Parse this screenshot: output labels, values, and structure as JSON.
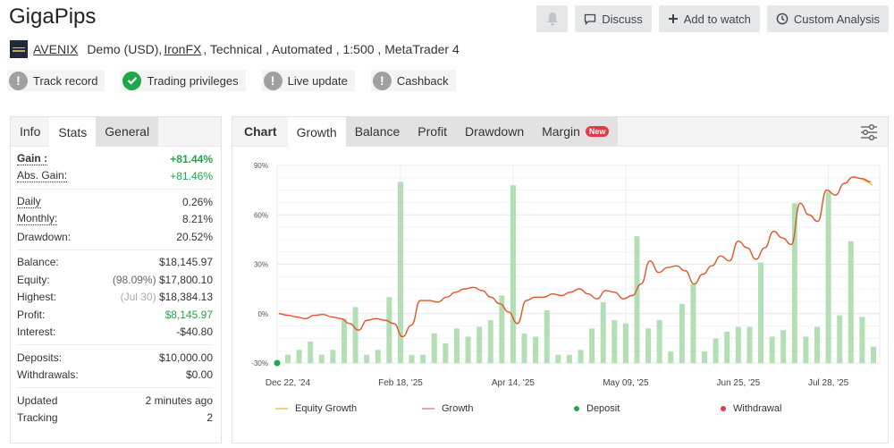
{
  "header": {
    "title": "GigaPips",
    "actions": {
      "bell_icon": "bell-icon",
      "discuss": "Discuss",
      "add_to_watch": "Add to watch",
      "custom_analysis": "Custom Analysis"
    }
  },
  "account": {
    "owner": "AVENIX",
    "type": "Demo (USD),",
    "broker": "IronFX",
    "details": ", Technical , Automated , 1:500 , MetaTrader 4"
  },
  "badges": [
    {
      "label": "Track record",
      "status": "warning"
    },
    {
      "label": "Trading privileges",
      "status": "ok"
    },
    {
      "label": "Live update",
      "status": "warning"
    },
    {
      "label": "Cashback",
      "status": "warning"
    }
  ],
  "left_tabs": [
    "Info",
    "Stats",
    "General"
  ],
  "stats": {
    "gain": {
      "label": "Gain :",
      "value": "+81.44%"
    },
    "abs_gain": {
      "label": "Abs. Gain:",
      "value": "+81.46%"
    },
    "daily": {
      "label": "Daily",
      "value": "0.26%"
    },
    "monthly": {
      "label": "Monthly:",
      "value": "8.21%"
    },
    "drawdown": {
      "label": "Drawdown:",
      "value": "20.52%"
    },
    "balance": {
      "label": "Balance:",
      "value": "$18,145.97"
    },
    "equity": {
      "label": "Equity:",
      "sub": "(98.09%)",
      "value": "$17,800.10"
    },
    "highest": {
      "label": "Highest:",
      "sub": "(Jul 30)",
      "value": "$18,384.13"
    },
    "profit": {
      "label": "Profit:",
      "value": "$8,145.97"
    },
    "interest": {
      "label": "Interest:",
      "value": "-$40.80"
    },
    "deposits": {
      "label": "Deposits:",
      "value": "$10,000.00"
    },
    "withdrawals": {
      "label": "Withdrawals:",
      "value": "$0.00"
    },
    "updated": {
      "label": "Updated",
      "value": "2 minutes ago"
    },
    "tracking": {
      "label": "Tracking",
      "value": "2"
    }
  },
  "chart_tabs": {
    "label": "Chart",
    "tabs": [
      "Growth",
      "Balance",
      "Profit",
      "Drawdown",
      "Margin"
    ],
    "new_badge": "New"
  },
  "colors": {
    "growth_line": "#e0562a",
    "equity_line": "#f2c94c",
    "bars": "#b3dfb4",
    "deposit": "#1ea84a",
    "withdrawal": "#e23a45",
    "positive": "#1ea84a"
  },
  "chart_data": {
    "type": "bar+line",
    "title": "Growth",
    "ylabel": "",
    "xlabel": "",
    "ylim": [
      -30,
      90
    ],
    "yticks": [
      "90%",
      "60%",
      "30%",
      "0%",
      "-30%"
    ],
    "yvalues": [
      90,
      60,
      30,
      0,
      -30
    ],
    "xticks": [
      "Dec 22, '24",
      "Feb 18, '25",
      "Apr 14, '25",
      "May 09, '25",
      "Jun 25, '25",
      "Jul 28, '25"
    ],
    "xtick_index": [
      0,
      10,
      20,
      30,
      40,
      48
    ],
    "grid": true,
    "legend": [
      "Equity Growth",
      "Growth",
      "Deposit",
      "Withdrawal"
    ],
    "legend_position": "bottom",
    "bars": [
      -25,
      -22,
      -17,
      -25,
      -22,
      -3,
      4,
      -25,
      -22,
      10,
      80,
      -25,
      -25,
      -12,
      -18,
      -9,
      -14,
      -8,
      -4,
      11,
      78,
      -12,
      -14,
      2,
      -25,
      -25,
      -22,
      -9,
      7,
      -4,
      -6,
      47,
      -9,
      -4,
      -23,
      6,
      18,
      -23,
      -15,
      -11,
      -8,
      -8,
      31,
      -14,
      -10,
      67,
      -14,
      -8,
      74,
      -1,
      44,
      -2,
      -20
    ],
    "growth_line": [
      0,
      -1,
      -2,
      -3,
      -1,
      -0.5,
      -2,
      -3,
      -6,
      -10,
      -4,
      -3,
      -4,
      -6,
      -14,
      -7,
      8,
      8,
      7,
      10,
      13,
      15,
      16,
      14,
      10,
      6,
      1,
      -6,
      8,
      10,
      10,
      12,
      11,
      13,
      15,
      12,
      9,
      14,
      13,
      9,
      11,
      18,
      32,
      25,
      28,
      29,
      26,
      18,
      24,
      29,
      35,
      32,
      44,
      40,
      33,
      40,
      50,
      46,
      42,
      67,
      60,
      56,
      75,
      72,
      79,
      83,
      82,
      80
    ],
    "equity_end": 78,
    "deposits": [
      {
        "index": 0,
        "value": -30
      }
    ]
  }
}
